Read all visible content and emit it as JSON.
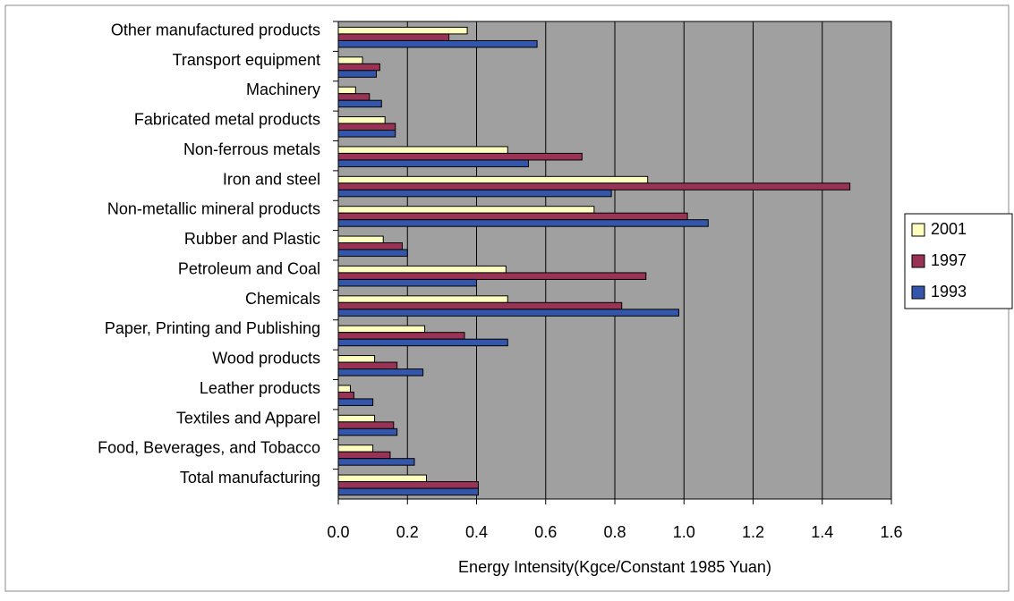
{
  "chart_data": {
    "type": "hbar",
    "xlabel": "Energy Intensity(Kgce/Constant 1985 Yuan)",
    "categories": [
      "Total manufacturing",
      "Food, Beverages, and Tobacco",
      "Textiles and Apparel",
      "Leather products",
      "Wood products",
      "Paper, Printing and Publishing",
      "Chemicals",
      "Petroleum and Coal",
      "Rubber and Plastic",
      "Non-metallic mineral products",
      "Iron and steel",
      "Non-ferrous metals",
      "Fabricated metal products",
      "Machinery",
      "Transport equipment",
      "Other manufactured products"
    ],
    "series": [
      {
        "name": "2001",
        "color": "#ffffc0",
        "values": [
          0.255,
          0.1,
          0.105,
          0.035,
          0.105,
          0.25,
          0.49,
          0.485,
          0.13,
          0.74,
          0.895,
          0.49,
          0.135,
          0.05,
          0.07,
          0.373
        ]
      },
      {
        "name": "1997",
        "color": "#993355",
        "values": [
          0.405,
          0.15,
          0.16,
          0.045,
          0.17,
          0.365,
          0.82,
          0.89,
          0.185,
          1.01,
          1.48,
          0.705,
          0.165,
          0.09,
          0.12,
          0.32
        ]
      },
      {
        "name": "1993",
        "color": "#3355aa",
        "values": [
          0.405,
          0.22,
          0.17,
          0.1,
          0.245,
          0.49,
          0.985,
          0.4,
          0.2,
          1.07,
          0.79,
          0.55,
          0.165,
          0.125,
          0.11,
          0.575
        ]
      }
    ],
    "xlim": [
      0,
      1.6
    ],
    "xticks": [
      {
        "value": 0,
        "label": "0.0"
      },
      0.2,
      0.4,
      0.6,
      0.8,
      {
        "value": 1,
        "label": "1.0"
      },
      1.2,
      1.4,
      1.6
    ],
    "grid": true,
    "legend": "right"
  }
}
